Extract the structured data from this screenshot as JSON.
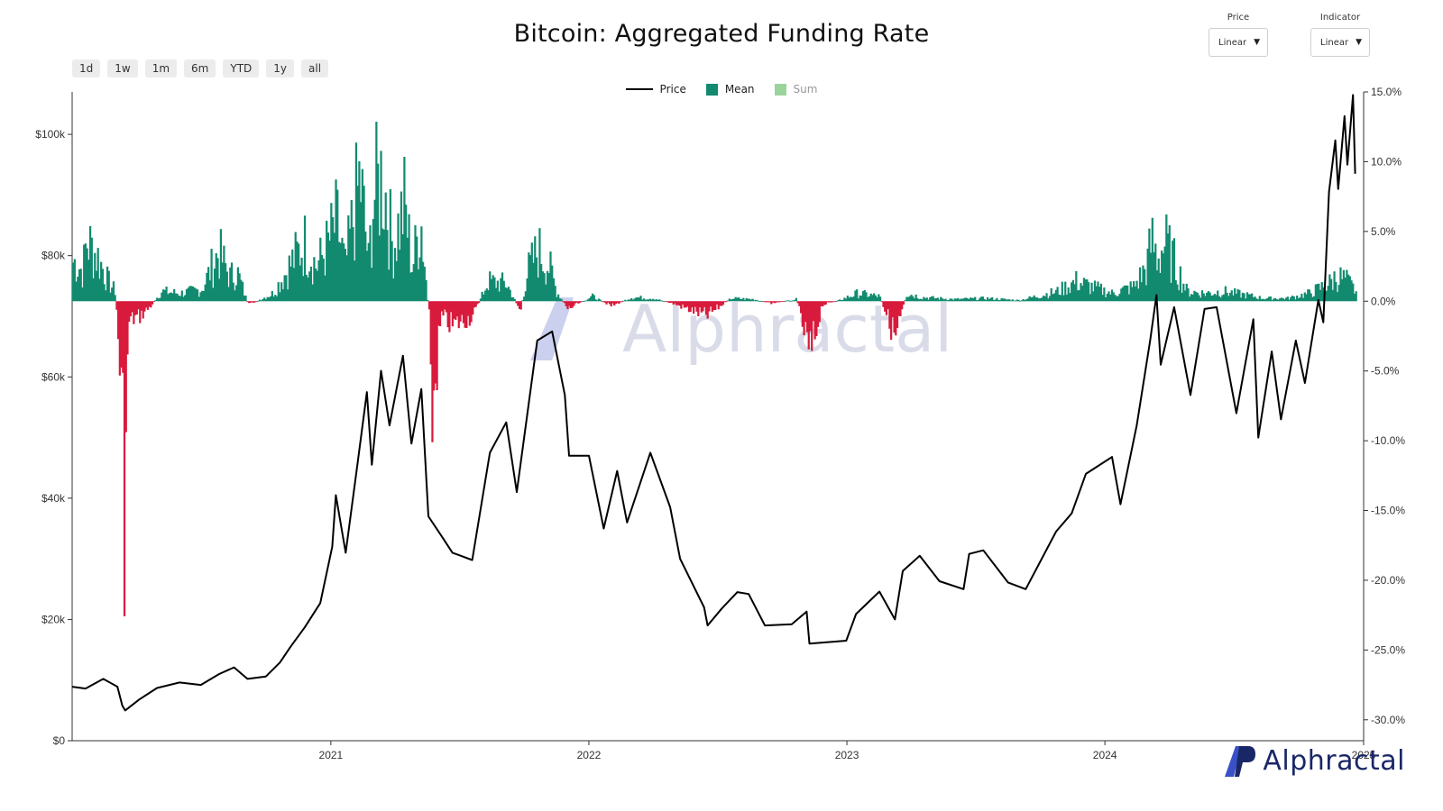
{
  "title": "Bitcoin: Aggregated Funding Rate",
  "range_buttons": [
    "1d",
    "1w",
    "1m",
    "6m",
    "YTD",
    "1y",
    "all"
  ],
  "price_select": {
    "label": "Price",
    "value": "Linear"
  },
  "indicator_select": {
    "label": "Indicator",
    "value": "Linear"
  },
  "legend": {
    "price": "Price",
    "mean": "Mean",
    "sum": "Sum"
  },
  "watermark": "Alphractal",
  "logo_text": "Alphractal",
  "colors": {
    "price": "#000000",
    "mean_pos": "#128a6f",
    "mean_neg": "#d81b3c",
    "sum": "#9ad49a",
    "watermark": "#b9bfd6"
  },
  "chart_data": {
    "type": "line",
    "x_axis": {
      "type": "date",
      "range": [
        "2020-01-01",
        "2025-01-01"
      ],
      "ticks": [
        "2021",
        "2022",
        "2023",
        "2024",
        "2025"
      ]
    },
    "y_left": {
      "label": "",
      "ticks": [
        "$0",
        "$20k",
        "$40k",
        "$60k",
        "$80k",
        "$100k"
      ],
      "range": [
        0,
        107000
      ]
    },
    "y_right": {
      "label": "",
      "ticks": [
        "15.0%",
        "10.0%",
        "5.0%",
        "0.0%",
        "-5.0%",
        "-10.0%",
        "-15.0%",
        "-20.0%",
        "-25.0%",
        "-30.0%"
      ],
      "range": [
        -31.5,
        15.0
      ]
    },
    "series": [
      {
        "name": "Price",
        "axis": "left",
        "points": [
          [
            "2020-01-01",
            8900
          ],
          [
            "2020-01-20",
            8600
          ],
          [
            "2020-02-14",
            10200
          ],
          [
            "2020-03-05",
            8900
          ],
          [
            "2020-03-12",
            5800
          ],
          [
            "2020-03-16",
            5000
          ],
          [
            "2020-04-05",
            6800
          ],
          [
            "2020-04-30",
            8700
          ],
          [
            "2020-06-01",
            9600
          ],
          [
            "2020-07-01",
            9200
          ],
          [
            "2020-07-27",
            11000
          ],
          [
            "2020-08-17",
            12100
          ],
          [
            "2020-09-05",
            10200
          ],
          [
            "2020-10-01",
            10600
          ],
          [
            "2020-10-21",
            12900
          ],
          [
            "2020-11-05",
            15500
          ],
          [
            "2020-11-25",
            18700
          ],
          [
            "2020-12-17",
            22700
          ],
          [
            "2021-01-03",
            32000
          ],
          [
            "2021-01-08",
            40500
          ],
          [
            "2021-01-22",
            31000
          ],
          [
            "2021-02-08",
            46000
          ],
          [
            "2021-02-21",
            57500
          ],
          [
            "2021-02-28",
            45500
          ],
          [
            "2021-03-13",
            61000
          ],
          [
            "2021-03-25",
            52000
          ],
          [
            "2021-04-13",
            63500
          ],
          [
            "2021-04-25",
            49000
          ],
          [
            "2021-05-09",
            58000
          ],
          [
            "2021-05-19",
            37000
          ],
          [
            "2021-06-08",
            33500
          ],
          [
            "2021-06-22",
            31000
          ],
          [
            "2021-07-20",
            29800
          ],
          [
            "2021-08-14",
            47500
          ],
          [
            "2021-09-06",
            52500
          ],
          [
            "2021-09-21",
            41000
          ],
          [
            "2021-10-20",
            66000
          ],
          [
            "2021-11-10",
            67500
          ],
          [
            "2021-11-28",
            57000
          ],
          [
            "2021-12-04",
            47000
          ],
          [
            "2022-01-01",
            47000
          ],
          [
            "2022-01-22",
            35000
          ],
          [
            "2022-02-10",
            44500
          ],
          [
            "2022-02-24",
            36000
          ],
          [
            "2022-03-29",
            47500
          ],
          [
            "2022-04-26",
            38500
          ],
          [
            "2022-05-10",
            30000
          ],
          [
            "2022-06-13",
            22000
          ],
          [
            "2022-06-18",
            19000
          ],
          [
            "2022-07-08",
            21800
          ],
          [
            "2022-07-30",
            24500
          ],
          [
            "2022-08-15",
            24200
          ],
          [
            "2022-09-07",
            19000
          ],
          [
            "2022-10-15",
            19200
          ],
          [
            "2022-11-05",
            21300
          ],
          [
            "2022-11-09",
            16000
          ],
          [
            "2022-12-31",
            16500
          ],
          [
            "2023-01-14",
            20900
          ],
          [
            "2023-02-16",
            24600
          ],
          [
            "2023-03-10",
            20000
          ],
          [
            "2023-03-21",
            28000
          ],
          [
            "2023-04-14",
            30500
          ],
          [
            "2023-05-12",
            26300
          ],
          [
            "2023-06-15",
            25000
          ],
          [
            "2023-06-23",
            30800
          ],
          [
            "2023-07-13",
            31400
          ],
          [
            "2023-08-17",
            26100
          ],
          [
            "2023-09-11",
            25000
          ],
          [
            "2023-10-24",
            34500
          ],
          [
            "2023-11-15",
            37500
          ],
          [
            "2023-12-05",
            44000
          ],
          [
            "2024-01-11",
            46800
          ],
          [
            "2024-01-23",
            39000
          ],
          [
            "2024-02-15",
            52000
          ],
          [
            "2024-03-05",
            66000
          ],
          [
            "2024-03-14",
            73500
          ],
          [
            "2024-03-20",
            62000
          ],
          [
            "2024-04-08",
            71500
          ],
          [
            "2024-05-01",
            57000
          ],
          [
            "2024-05-21",
            71200
          ],
          [
            "2024-06-07",
            71500
          ],
          [
            "2024-07-05",
            54000
          ],
          [
            "2024-07-29",
            69500
          ],
          [
            "2024-08-05",
            50000
          ],
          [
            "2024-08-24",
            64200
          ],
          [
            "2024-09-06",
            53000
          ],
          [
            "2024-09-27",
            66000
          ],
          [
            "2024-10-10",
            59000
          ],
          [
            "2024-10-29",
            72700
          ],
          [
            "2024-11-05",
            69000
          ],
          [
            "2024-11-13",
            90500
          ],
          [
            "2024-11-22",
            99000
          ],
          [
            "2024-11-26",
            91000
          ],
          [
            "2024-12-05",
            103000
          ],
          [
            "2024-12-09",
            95000
          ],
          [
            "2024-12-17",
            106500
          ],
          [
            "2024-12-20",
            93500
          ]
        ]
      },
      {
        "name": "Mean",
        "axis": "right",
        "note_values_percent": true,
        "points": [
          [
            "2020-01-05",
            4.0
          ],
          [
            "2020-01-15",
            3.0
          ],
          [
            "2020-01-20",
            6.2
          ],
          [
            "2020-02-05",
            4.5
          ],
          [
            "2020-02-20",
            2.0
          ],
          [
            "2020-03-01",
            1.0
          ],
          [
            "2020-03-12",
            -12.5
          ],
          [
            "2020-03-13",
            -22.5
          ],
          [
            "2020-03-20",
            -2.0
          ],
          [
            "2020-04-05",
            -1.5
          ],
          [
            "2020-04-20",
            -0.5
          ],
          [
            "2020-05-05",
            1.0
          ],
          [
            "2020-06-01",
            0.8
          ],
          [
            "2020-07-01",
            1.2
          ],
          [
            "2020-07-25",
            5.0
          ],
          [
            "2020-08-10",
            2.5
          ],
          [
            "2020-08-20",
            3.0
          ],
          [
            "2020-09-05",
            -0.4
          ],
          [
            "2020-10-10",
            0.8
          ],
          [
            "2020-11-10",
            4.5
          ],
          [
            "2020-11-25",
            6.0
          ],
          [
            "2020-12-10",
            3.5
          ],
          [
            "2020-12-25",
            5.5
          ],
          [
            "2021-01-08",
            8.0
          ],
          [
            "2021-01-20",
            3.5
          ],
          [
            "2021-02-10",
            12.5
          ],
          [
            "2021-02-22",
            4.0
          ],
          [
            "2021-03-01",
            10.5
          ],
          [
            "2021-03-14",
            13.0
          ],
          [
            "2021-03-28",
            5.5
          ],
          [
            "2021-04-14",
            9.8
          ],
          [
            "2021-04-25",
            3.5
          ],
          [
            "2021-05-07",
            8.5
          ],
          [
            "2021-05-14",
            2.5
          ],
          [
            "2021-05-19",
            -2.0
          ],
          [
            "2021-05-21",
            -13.0
          ],
          [
            "2021-06-05",
            -1.5
          ],
          [
            "2021-06-20",
            -2.5
          ],
          [
            "2021-07-20",
            -1.5
          ],
          [
            "2021-08-10",
            2.0
          ],
          [
            "2021-09-05",
            1.8
          ],
          [
            "2021-09-25",
            -1.0
          ],
          [
            "2021-10-05",
            3.0
          ],
          [
            "2021-10-20",
            5.2
          ],
          [
            "2021-11-05",
            3.5
          ],
          [
            "2021-11-15",
            1.0
          ],
          [
            "2021-12-01",
            -0.8
          ],
          [
            "2022-01-05",
            0.5
          ],
          [
            "2022-02-01",
            -0.5
          ],
          [
            "2022-03-01",
            0.4
          ],
          [
            "2022-04-01",
            0.3
          ],
          [
            "2022-05-01",
            -0.3
          ],
          [
            "2022-06-15",
            -1.5
          ],
          [
            "2022-07-20",
            0.3
          ],
          [
            "2022-08-20",
            0.2
          ],
          [
            "2022-09-15",
            -0.2
          ],
          [
            "2022-10-20",
            0.2
          ],
          [
            "2022-11-09",
            -5.8
          ],
          [
            "2022-11-25",
            -0.4
          ],
          [
            "2022-12-20",
            0.1
          ],
          [
            "2023-01-15",
            0.8
          ],
          [
            "2023-02-15",
            0.5
          ],
          [
            "2023-03-10",
            -3.8
          ],
          [
            "2023-03-25",
            0.8
          ],
          [
            "2023-04-15",
            0.4
          ],
          [
            "2023-06-01",
            0.2
          ],
          [
            "2023-07-15",
            0.3
          ],
          [
            "2023-09-01",
            0.1
          ],
          [
            "2023-10-25",
            1.0
          ],
          [
            "2023-11-20",
            2.0
          ],
          [
            "2023-12-10",
            1.5
          ],
          [
            "2024-01-10",
            0.8
          ],
          [
            "2024-02-10",
            1.5
          ],
          [
            "2024-02-28",
            3.5
          ],
          [
            "2024-03-06",
            6.2
          ],
          [
            "2024-03-14",
            4.5
          ],
          [
            "2024-03-25",
            5.9
          ],
          [
            "2024-04-10",
            3.5
          ],
          [
            "2024-04-25",
            1.0
          ],
          [
            "2024-05-20",
            0.8
          ],
          [
            "2024-06-15",
            1.0
          ],
          [
            "2024-07-20",
            0.6
          ],
          [
            "2024-08-10",
            0.3
          ],
          [
            "2024-09-15",
            0.3
          ],
          [
            "2024-10-15",
            0.8
          ],
          [
            "2024-11-12",
            1.8
          ],
          [
            "2024-11-22",
            2.5
          ],
          [
            "2024-12-05",
            2.2
          ],
          [
            "2024-12-20",
            1.0
          ]
        ]
      }
    ],
    "grid": false,
    "legend_position": "top-center"
  }
}
